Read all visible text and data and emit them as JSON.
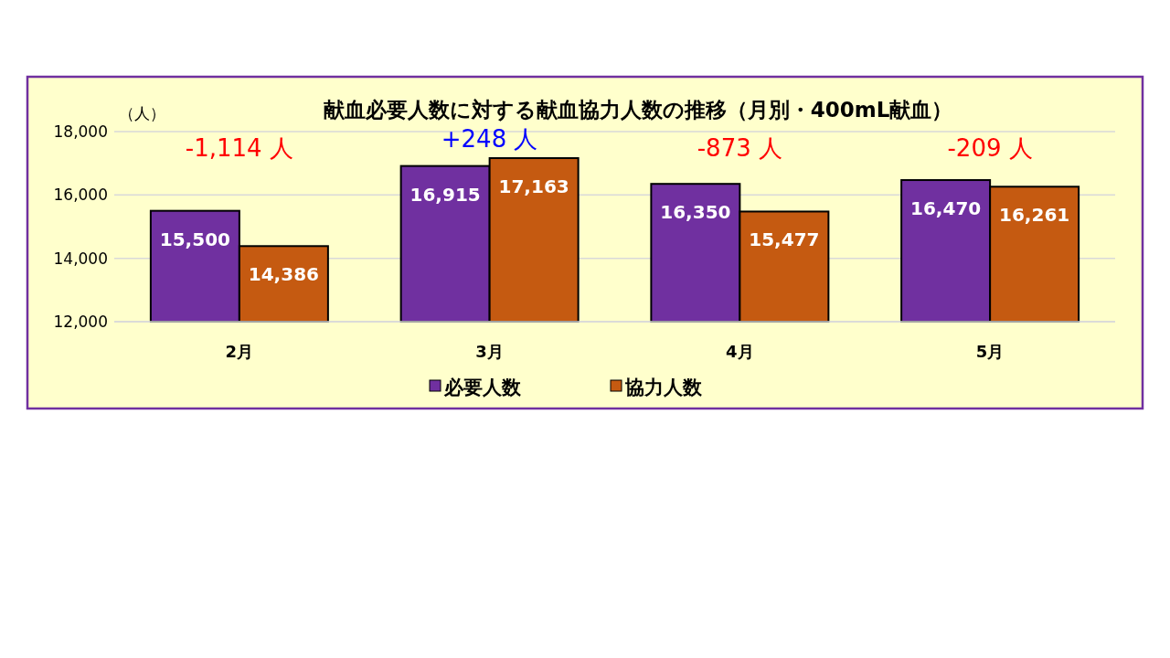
{
  "chart_data": {
    "type": "bar",
    "title": "献血必要人数に対する献血協力人数の推移（月別・400mL献血）",
    "ylabel": "（人）",
    "categories": [
      "2月",
      "3月",
      "4月",
      "5月"
    ],
    "series": [
      {
        "name": "必要人数",
        "color": "#7030a0",
        "values": [
          15500,
          16915,
          16350,
          16470
        ],
        "value_labels": [
          "15,500",
          "16,915",
          "16,350",
          "16,470"
        ]
      },
      {
        "name": "協力人数",
        "color": "#c55a11",
        "values": [
          14386,
          17163,
          15477,
          16261
        ],
        "value_labels": [
          "14,386",
          "17,163",
          "15,477",
          "16,261"
        ]
      }
    ],
    "ylim": [
      12000,
      18000
    ],
    "yticks": [
      {
        "value": 12000,
        "label": "12,000"
      },
      {
        "value": 14000,
        "label": "14,000"
      },
      {
        "value": 16000,
        "label": "16,000"
      },
      {
        "value": 18000,
        "label": "18,000"
      }
    ],
    "grid": "y",
    "legend": "bottom",
    "annotations": [
      "-1,114 人",
      "+248 人",
      "-873 人",
      "-209 人"
    ]
  }
}
